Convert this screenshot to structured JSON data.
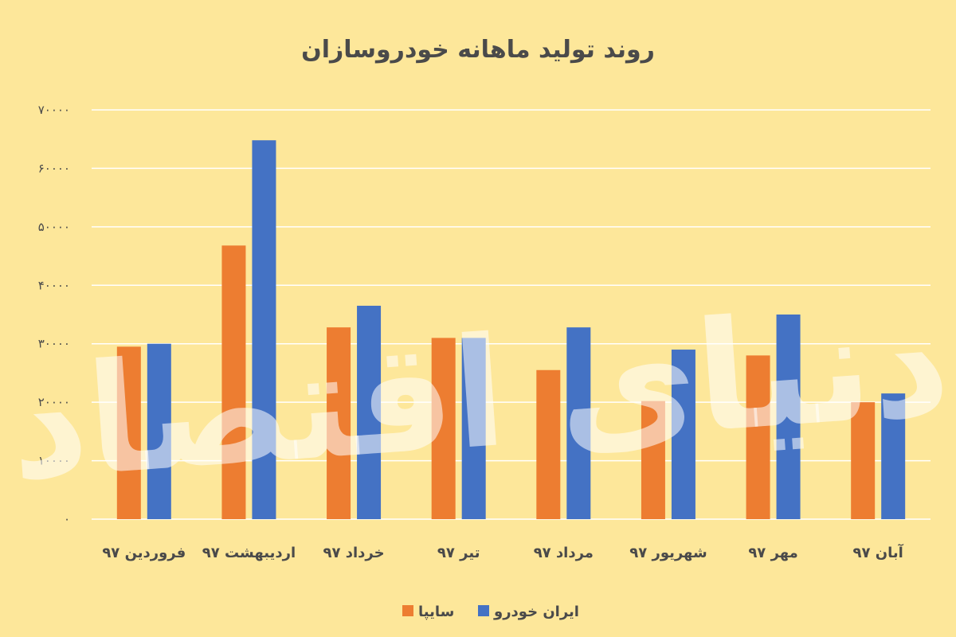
{
  "chart_data": {
    "type": "bar",
    "title": "روند تولید ماهانه خودروسازان",
    "categories": [
      "فروردین ۹۷",
      "اردیبهشت ۹۷",
      "خرداد ۹۷",
      "تیر ۹۷",
      "مرداد ۹۷",
      "شهریور ۹۷",
      "مهر ۹۷",
      "آبان ۹۷"
    ],
    "series": [
      {
        "name": "سایپا",
        "color": "#ed7d31",
        "values": [
          29500,
          46800,
          32800,
          31000,
          25500,
          20200,
          28000,
          20000
        ]
      },
      {
        "name": "ایران خودرو",
        "color": "#4472c4",
        "values": [
          30000,
          64800,
          36500,
          31000,
          32800,
          29000,
          35000,
          21500
        ]
      }
    ],
    "yticks": [
      "۰",
      "۱۰۰۰۰",
      "۲۰۰۰۰",
      "۳۰۰۰۰",
      "۴۰۰۰۰",
      "۵۰۰۰۰",
      "۶۰۰۰۰",
      "۷۰۰۰۰"
    ],
    "ylim": [
      0,
      70000
    ],
    "grid": true,
    "legend_position": "bottom",
    "xlabel": "",
    "ylabel": ""
  },
  "watermark": "دنیای اقتصاد"
}
